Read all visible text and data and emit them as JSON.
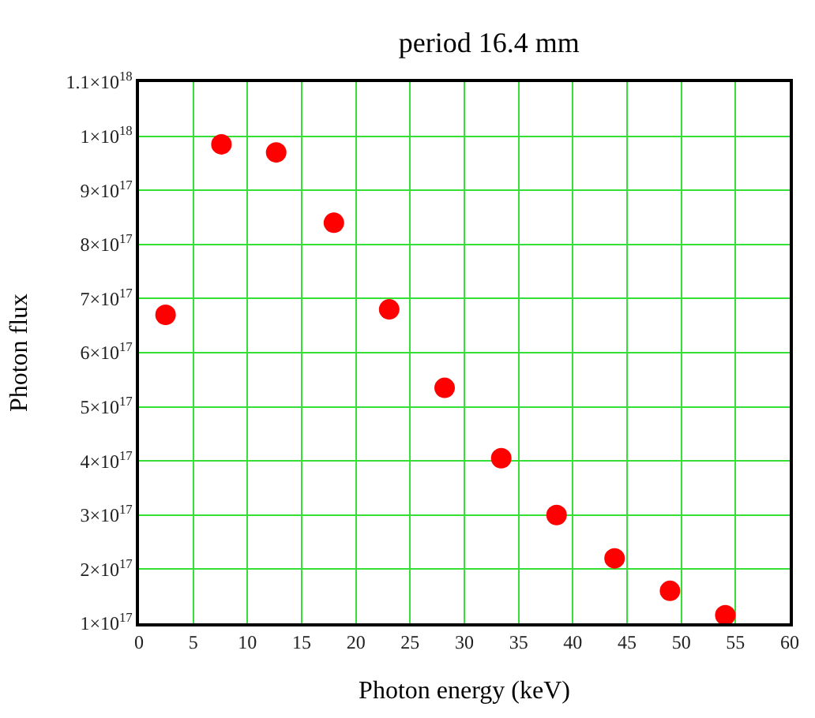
{
  "chart_data": {
    "type": "scatter",
    "title": "period 16.4 mm",
    "xlabel": "Photon energy (keV)",
    "ylabel": "Photon flux",
    "x": [
      2.45,
      7.6,
      12.65,
      17.97,
      23.07,
      28.18,
      33.4,
      38.5,
      43.85,
      48.96,
      54.06
    ],
    "series": [
      {
        "color": "#ff0000",
        "values": [
          6.7e+17,
          9.85e+17,
          9.7e+17,
          8.4e+17,
          6.8e+17,
          5.35e+17,
          4.05e+17,
          3e+17,
          2.2e+17,
          1.6e+17,
          1.15e+17
        ]
      }
    ],
    "marker": "circle",
    "grid": true,
    "xlim": [
      0,
      60
    ],
    "xticks": [
      0,
      5,
      10,
      15,
      20,
      25,
      30,
      35,
      40,
      45,
      50,
      55,
      60
    ],
    "ylim": [
      1e+17,
      1.1e+18
    ],
    "yticks": [
      {
        "value": 1e+17,
        "label": "1×10$^{17}$"
      },
      {
        "value": 2e+17,
        "label": "2×10$^{17}$"
      },
      {
        "value": 3e+17,
        "label": "3×10$^{17}$"
      },
      {
        "value": 4e+17,
        "label": "4×10$^{17}$"
      },
      {
        "value": 5e+17,
        "label": "5×10$^{17}$"
      },
      {
        "value": 6e+17,
        "label": "6×10$^{17}$"
      },
      {
        "value": 7e+17,
        "label": "7×10$^{17}$"
      },
      {
        "value": 8e+17,
        "label": "8×10$^{17}$"
      },
      {
        "value": 9e+17,
        "label": "9×10$^{17}$"
      },
      {
        "value": 1e+18,
        "label": "1×10$^{18}$"
      },
      {
        "value": 1.1e+18,
        "label": "1.1×10$^{18}$"
      }
    ]
  }
}
